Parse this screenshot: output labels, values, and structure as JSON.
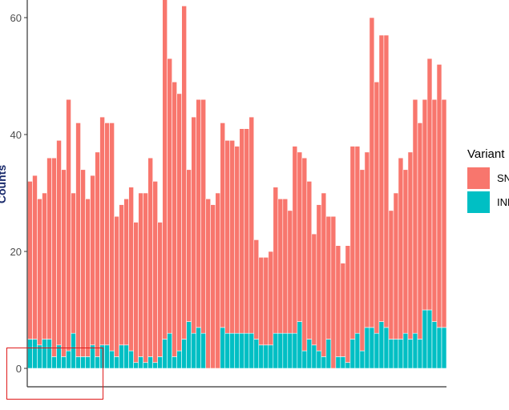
{
  "chart_data": {
    "type": "bar",
    "stacked": true,
    "title": "",
    "xlabel": "",
    "ylabel": "Counts",
    "ylim": [
      0,
      63
    ],
    "yticks": [
      0,
      20,
      40,
      60
    ],
    "grid": false,
    "legend": {
      "title": "Variant",
      "placement": "right"
    },
    "series": [
      {
        "name": "SNP",
        "color": "#F8766D",
        "values": [
          27,
          28,
          25,
          25,
          31,
          34,
          35,
          32,
          43,
          24,
          40,
          32,
          27,
          29,
          35,
          39,
          38,
          39,
          24,
          24,
          25,
          28,
          24,
          28,
          29,
          34,
          31,
          23,
          60,
          47,
          47,
          44,
          57,
          26,
          37,
          39,
          40,
          29,
          28,
          30,
          35,
          33,
          33,
          32,
          35,
          35,
          37,
          17,
          15,
          15,
          16,
          25,
          23,
          23,
          21,
          32,
          29,
          33,
          27,
          19,
          25,
          28,
          21,
          26,
          19,
          16,
          20,
          33,
          32,
          31,
          30,
          53,
          43,
          49,
          50,
          22,
          25,
          31,
          28,
          32,
          40,
          37,
          36,
          43,
          38,
          45,
          39
        ]
      },
      {
        "name": "INDEL",
        "color": "#00BFC4",
        "values": [
          5,
          5,
          4,
          5,
          5,
          2,
          4,
          2,
          3,
          6,
          2,
          2,
          2,
          4,
          2,
          4,
          4,
          3,
          2,
          4,
          4,
          3,
          1,
          2,
          1,
          2,
          1,
          2,
          5,
          6,
          2,
          3,
          5,
          8,
          6,
          7,
          6,
          0,
          0,
          0,
          7,
          6,
          6,
          6,
          6,
          6,
          6,
          5,
          4,
          4,
          4,
          6,
          6,
          6,
          6,
          6,
          8,
          3,
          5,
          4,
          3,
          2,
          5,
          0,
          2,
          2,
          1,
          5,
          6,
          3,
          7,
          7,
          6,
          8,
          7,
          5,
          5,
          5,
          6,
          5,
          6,
          5,
          10,
          10,
          8,
          7,
          7
        ]
      }
    ]
  }
}
